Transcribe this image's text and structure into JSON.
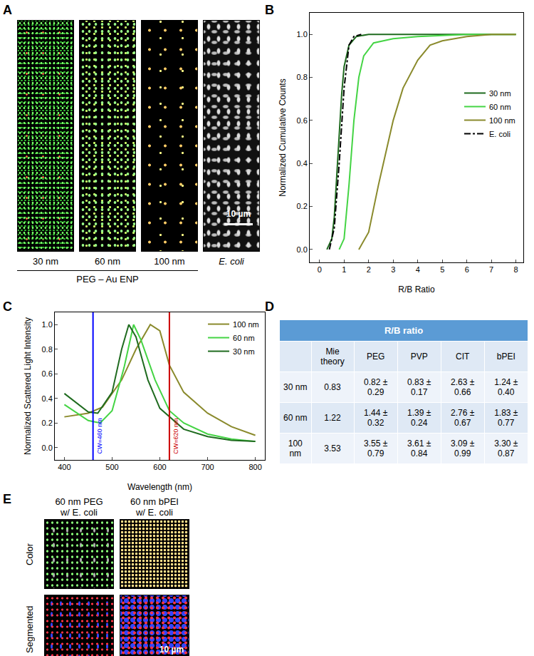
{
  "panel_labels": [
    "A",
    "B",
    "C",
    "D",
    "E"
  ],
  "panel_A": {
    "images": [
      "30 nm",
      "60 nm",
      "100 nm",
      "E. coli"
    ],
    "group_label": "PEG – Au ENP",
    "scale_bar": "10 µm"
  },
  "chart_data": [
    {
      "type": "line",
      "x_label": "R/B Ratio",
      "y_label": "Normalized Cumulative Counts",
      "xlim": [
        -0.4,
        8.3
      ],
      "xticks": [
        0,
        1,
        2,
        3,
        4,
        5,
        6,
        7,
        8
      ],
      "ylim": [
        -0.06,
        1.1
      ],
      "yticks": [
        {
          "value": 0,
          "label": "0.0"
        },
        0.2,
        0.4,
        0.6,
        0.8,
        {
          "value": 1,
          "label": "1.0"
        }
      ],
      "grid": false,
      "legend": "right",
      "series": [
        {
          "name": "30 nm",
          "color": "#1f6b1f",
          "line_style": "solid",
          "x": [
            0.3,
            0.5,
            0.6,
            0.7,
            0.8,
            0.9,
            1.0,
            1.2,
            1.5,
            2.0,
            8.0
          ],
          "values": [
            0,
            0.05,
            0.15,
            0.35,
            0.55,
            0.72,
            0.85,
            0.95,
            0.99,
            1.0,
            1.0
          ]
        },
        {
          "name": "60 nm",
          "color": "#44d444",
          "line_style": "solid",
          "x": [
            0.8,
            1.0,
            1.2,
            1.4,
            1.6,
            1.8,
            2.2,
            3.0,
            4.0,
            6.0,
            8.0
          ],
          "values": [
            0,
            0.05,
            0.3,
            0.6,
            0.8,
            0.9,
            0.96,
            0.98,
            0.99,
            1.0,
            1.0
          ]
        },
        {
          "name": "100 nm",
          "color": "#8a8a2c",
          "line_style": "solid",
          "x": [
            1.6,
            2.0,
            2.4,
            2.8,
            3.0,
            3.4,
            4.0,
            4.5,
            5.0,
            6.0,
            7.0,
            8.0
          ],
          "values": [
            0,
            0.08,
            0.3,
            0.5,
            0.6,
            0.75,
            0.88,
            0.95,
            0.97,
            0.99,
            1.0,
            1.0
          ]
        },
        {
          "name": "E. coli",
          "color": "#000000",
          "line_style": "dashdot",
          "x": [
            0.4,
            0.6,
            0.8,
            1.0,
            1.2,
            1.4,
            1.7
          ],
          "values": [
            0,
            0.1,
            0.4,
            0.75,
            0.95,
            0.99,
            1.0
          ]
        }
      ]
    },
    {
      "type": "line",
      "x_label": "Wavelength (nm)",
      "y_label": "Normalized Scattered Light Intensity",
      "xlim": [
        380,
        820
      ],
      "xticks": [
        400,
        500,
        600,
        700,
        800
      ],
      "ylim": [
        -0.1,
        1.1
      ],
      "yticks": [
        {
          "value": 0,
          "label": "0.0"
        },
        0.2,
        0.4,
        0.6,
        0.8,
        {
          "value": 1,
          "label": "1.0"
        }
      ],
      "grid": false,
      "legend": "upper right",
      "vlines": [
        {
          "x": 460,
          "label": "CW=460 nm",
          "color": "#0000ff"
        },
        {
          "x": 620,
          "label": "CW=620 nm",
          "color": "#cc0000"
        }
      ],
      "series": [
        {
          "name": "100 nm",
          "color": "#8a8a2c",
          "line_style": "solid",
          "x": [
            400,
            450,
            480,
            520,
            550,
            580,
            600,
            620,
            650,
            700,
            750,
            800
          ],
          "values": [
            0.25,
            0.28,
            0.33,
            0.55,
            0.8,
            1.0,
            0.95,
            0.67,
            0.45,
            0.28,
            0.17,
            0.1
          ]
        },
        {
          "name": "60 nm",
          "color": "#44d444",
          "line_style": "solid",
          "x": [
            400,
            450,
            475,
            500,
            525,
            545,
            560,
            590,
            620,
            650,
            700,
            750,
            800
          ],
          "values": [
            0.35,
            0.22,
            0.2,
            0.3,
            0.65,
            1.0,
            0.88,
            0.55,
            0.3,
            0.2,
            0.11,
            0.07,
            0.05
          ]
        },
        {
          "name": "30 nm",
          "color": "#1f6b1f",
          "line_style": "solid",
          "x": [
            400,
            450,
            470,
            500,
            520,
            535,
            550,
            575,
            600,
            650,
            700,
            750,
            800
          ],
          "values": [
            0.44,
            0.29,
            0.28,
            0.45,
            0.8,
            1.0,
            0.9,
            0.55,
            0.32,
            0.15,
            0.09,
            0.06,
            0.05
          ]
        }
      ]
    }
  ],
  "panel_D": {
    "title": "R/B ratio",
    "columns": [
      null,
      "Mie theory",
      "PEG",
      "PVP",
      "CIT",
      "bPEI"
    ],
    "rows": [
      [
        "30 nm",
        "0.83",
        "0.82 ± 0.29",
        "0.83 ± 0.17",
        "2.63 ± 0.66",
        "1.24 ± 0.40"
      ],
      [
        "60 nm",
        "1.22",
        "1.44 ± 0.32",
        "1.39 ± 0.24",
        "2.76 ± 0.67",
        "1.83 ± 0.77"
      ],
      [
        "100 nm",
        "3.53",
        "3.55 ± 0.79",
        "3.61 ± 0.84",
        "3.09 ± 0.99",
        "3.30 ± 0.87"
      ]
    ]
  },
  "panel_E": {
    "columns": [
      [
        "60 nm PEG",
        "w/ E. coli"
      ],
      [
        "60 nm bPEI",
        "w/ E. coli"
      ]
    ],
    "rows": [
      "Color",
      "Segmented"
    ],
    "scale_bar": "10 µm"
  }
}
